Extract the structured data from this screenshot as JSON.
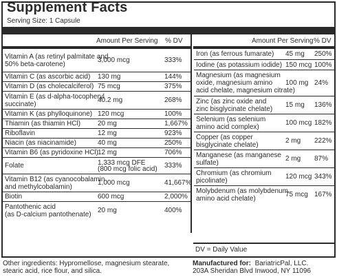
{
  "header": {
    "title": "Supplement Facts",
    "serving_size": "Serving Size: 1 Capsule",
    "col_amount": "Amount Per Serving",
    "col_dv": "% DV"
  },
  "left_rows": [
    {
      "name": [
        "Vitamin A (as retinyl palmitate and",
        "50% beta-carotene)"
      ],
      "amount": "3,000 mcg",
      "dv": "333%"
    },
    {
      "name": [
        "Vitamin C (as ascorbic acid)"
      ],
      "amount": "130 mg",
      "dv": "144%"
    },
    {
      "name": [
        "Vitamin D (as cholecalciferol)"
      ],
      "amount": "75 mcg",
      "dv": "375%"
    },
    {
      "name": [
        "Vitamin E (as d-alpha-tocopheryl",
        "succinate)"
      ],
      "amount": "40.2 mg",
      "dv": "268%"
    },
    {
      "name": [
        "Vitamin K (as phylloquinone)"
      ],
      "amount": "120 mcg",
      "dv": "100%"
    },
    {
      "name": [
        "Thiamin (as thiamin HCl)"
      ],
      "amount": "20 mg",
      "dv": "1,667%"
    },
    {
      "name": [
        "Riboflavin"
      ],
      "amount": "12 mg",
      "dv": "923%"
    },
    {
      "name": [
        "Niacin (as niacinamide)"
      ],
      "amount": "40 mg",
      "dv": "250%"
    },
    {
      "name": [
        "Vitamin B6 (as pyridoxine HCl)"
      ],
      "amount": "12 mg",
      "dv": "706%"
    },
    {
      "name": [
        "Folate"
      ],
      "amount": [
        "1,333 mcg DFE",
        "(800 mcg folic acid)"
      ],
      "dv": "333%"
    },
    {
      "name": [
        "Vitamin B12 (as cyanocobalamin",
        "and methylcobalamin)"
      ],
      "amount": "1,000 mcg",
      "dv": "41,667%"
    },
    {
      "name": [
        "Biotin"
      ],
      "amount": "600 mcg",
      "dv": "2,000%"
    },
    {
      "name": [
        "Pantothenic acid",
        "(as D-calcium pantothenate)"
      ],
      "amount": "20 mg",
      "dv": "400%"
    }
  ],
  "right_rows": [
    {
      "name": [
        "Iron (as ferrous fumarate)"
      ],
      "amount": "45 mg",
      "dv": "250%"
    },
    {
      "name": [
        "Iodine (as potassium iodide)"
      ],
      "amount": "150 mcg",
      "dv": "100%"
    },
    {
      "name": [
        "Magnesium (as magnesium",
        "oxide, magnesium amino",
        "acid chelate, magnesium citrate)"
      ],
      "amount": "100 mg",
      "dv": "24%"
    },
    {
      "name": [
        "Zinc (as zinc oxide and",
        "zinc bisglycinate chelate)"
      ],
      "amount": "15 mg",
      "dv": "136%"
    },
    {
      "name": [
        "Selenium (as selenium",
        "amino acid complex)"
      ],
      "amount": "100 mcg",
      "dv": "182%"
    },
    {
      "name": [
        "Copper (as copper",
        "bisglycinate chelate)"
      ],
      "amount": "2 mg",
      "dv": "222%"
    },
    {
      "name": [
        "Manganese (as manganese",
        "sulfate)"
      ],
      "amount": "2 mg",
      "dv": "87%"
    },
    {
      "name": [
        "Chromium (as chromium",
        "picolinate)"
      ],
      "amount": "120 mcg",
      "dv": "343%"
    },
    {
      "name": [
        "Molybdenum (as molybdenum",
        "amino acid chelate)"
      ],
      "amount": "75 mcg",
      "dv": "167%"
    }
  ],
  "dv_note": "DV = Daily Value",
  "footer": {
    "ingredients_lines": [
      "Other ingredients: Hypromellose, magnesium stearate,",
      "stearic acid, rice flour, and silica."
    ],
    "manufactured_label": "Manufactured for:",
    "manufacturer_line1": "BariatricPal, LLC.",
    "manufacturer_line2": "203A Sheridan Blvd  Inwood, NY 11096"
  }
}
